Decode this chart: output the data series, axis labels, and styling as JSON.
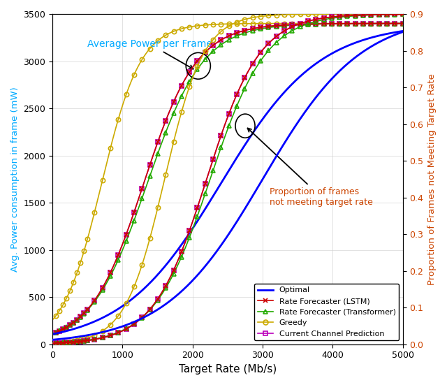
{
  "xlabel": "Target Rate (Mb/s)",
  "ylabel_left": "Avg. Power consumption in frame (mW)",
  "ylabel_right": "Proportion of Frames not Meeting Target Rate",
  "xlim": [
    0,
    5000
  ],
  "ylim_left": [
    0,
    3500
  ],
  "ylim_right": [
    0,
    0.9
  ],
  "yticks_left": [
    0,
    500,
    1000,
    1500,
    2000,
    2500,
    3000,
    3500
  ],
  "yticks_right": [
    0,
    0.1,
    0.2,
    0.3,
    0.4,
    0.5,
    0.6,
    0.7,
    0.8,
    0.9
  ],
  "xticks": [
    0,
    1000,
    2000,
    3000,
    4000,
    5000
  ],
  "colors": {
    "optimal": "#0000FF",
    "lstm": "#CC0000",
    "transformer": "#22AA00",
    "greedy": "#CCAA00",
    "current": "#BB00BB"
  },
  "left_label_color": "#00AAFF",
  "right_label_color": "#CC4400",
  "annotation1_text": "Average Power per Frame",
  "annotation2_text": "Proportion of frames\nnot meeting target rate"
}
